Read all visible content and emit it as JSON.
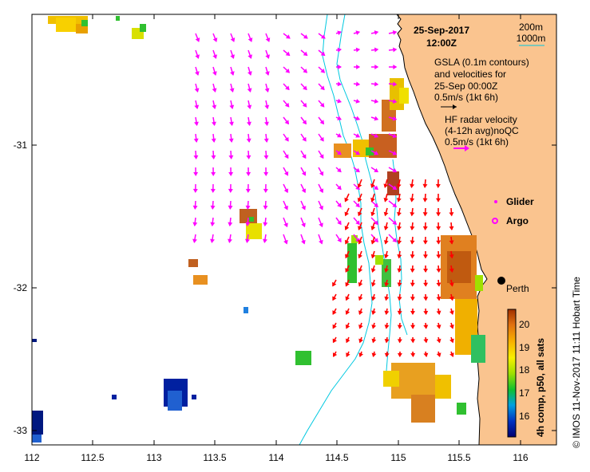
{
  "map": {
    "date": "25-Sep-2017",
    "time": "12:00Z",
    "x_ticks": [
      "112",
      "112.5",
      "113",
      "113.5",
      "114",
      "114.5",
      "115",
      "115.5",
      "116"
    ],
    "y_ticks": [
      "-31",
      "-32",
      "-33"
    ],
    "isobath_legend": {
      "a": "200m",
      "b": "1000m"
    },
    "gsla_text": [
      "GSLA (0.1m contours)",
      "and velocities for",
      "25-Sep 00:00Z",
      "0.5m/s (1kt 6h)"
    ],
    "hf_text": [
      "HF radar velocity",
      "(4-12h avg)noQC",
      "0.5m/s (1kt 6h)"
    ],
    "glider_label": "Glider",
    "argo_label": "Argo",
    "city_label": "Perth",
    "colorbar": {
      "ticks": [
        "20",
        "19",
        "18",
        "17",
        "16"
      ],
      "title": "4h comp, p50, all sats"
    },
    "credit": "© IMOS 11-Nov-2017 11:11 Hobart Time",
    "colors": {
      "land": "#fac48f",
      "gsla_arrow": "#ff00ff",
      "hf_arrow": "#ff0000",
      "isobath": "#00c8e0"
    }
  }
}
